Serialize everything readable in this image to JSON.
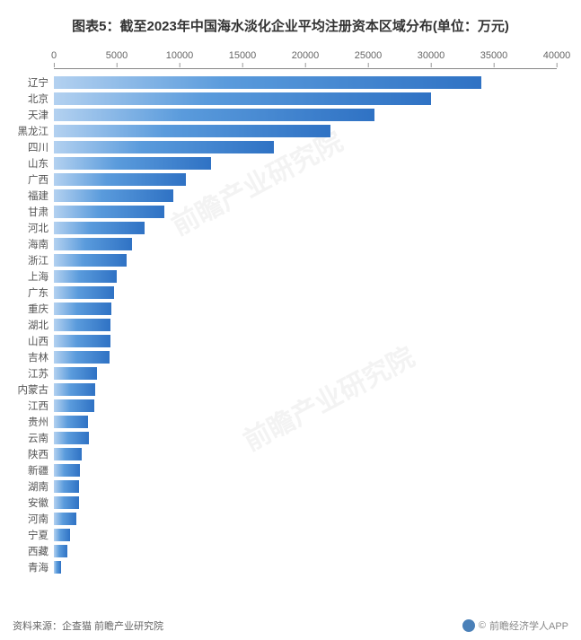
{
  "chart": {
    "type": "bar-horizontal",
    "title": "图表5：截至2023年中国海水淡化企业平均注册资本区域分布(单位：万元)",
    "title_fontsize": 15,
    "title_color": "#333333",
    "background_color": "#ffffff",
    "bar_gradient_start": "#b3d1f0",
    "bar_gradient_mid": "#5a9bdc",
    "bar_gradient_end": "#2f72c4",
    "axis_color": "#888888",
    "label_color": "#555555",
    "tick_color": "#666666",
    "label_fontsize": 11.5,
    "tick_fontsize": 11,
    "xlim": [
      0,
      40000
    ],
    "xtick_step": 5000,
    "xticks": [
      0,
      5000,
      10000,
      15000,
      20000,
      25000,
      30000,
      35000,
      40000
    ],
    "bar_row_height": 18,
    "bar_inset": 2,
    "categories": [
      "辽宁",
      "北京",
      "天津",
      "黑龙江",
      "四川",
      "山东",
      "广西",
      "福建",
      "甘肃",
      "河北",
      "海南",
      "浙江",
      "上海",
      "广东",
      "重庆",
      "湖北",
      "山西",
      "吉林",
      "江苏",
      "内蒙古",
      "江西",
      "贵州",
      "云南",
      "陕西",
      "新疆",
      "湖南",
      "安徽",
      "河南",
      "宁夏",
      "西藏",
      "青海"
    ],
    "values": [
      34000,
      30000,
      25500,
      22000,
      17500,
      12500,
      10500,
      9500,
      8800,
      7200,
      6200,
      5800,
      5000,
      4800,
      4600,
      4500,
      4500,
      4400,
      3400,
      3300,
      3200,
      2700,
      2800,
      2200,
      2100,
      2000,
      2000,
      1800,
      1300,
      1100,
      600
    ]
  },
  "watermark": {
    "text": "前瞻产业研究院"
  },
  "footer": {
    "source_label": "资料来源：",
    "source_value": "企查猫 前瞻产业研究院",
    "copyright": "前瞻经济学人APP"
  }
}
